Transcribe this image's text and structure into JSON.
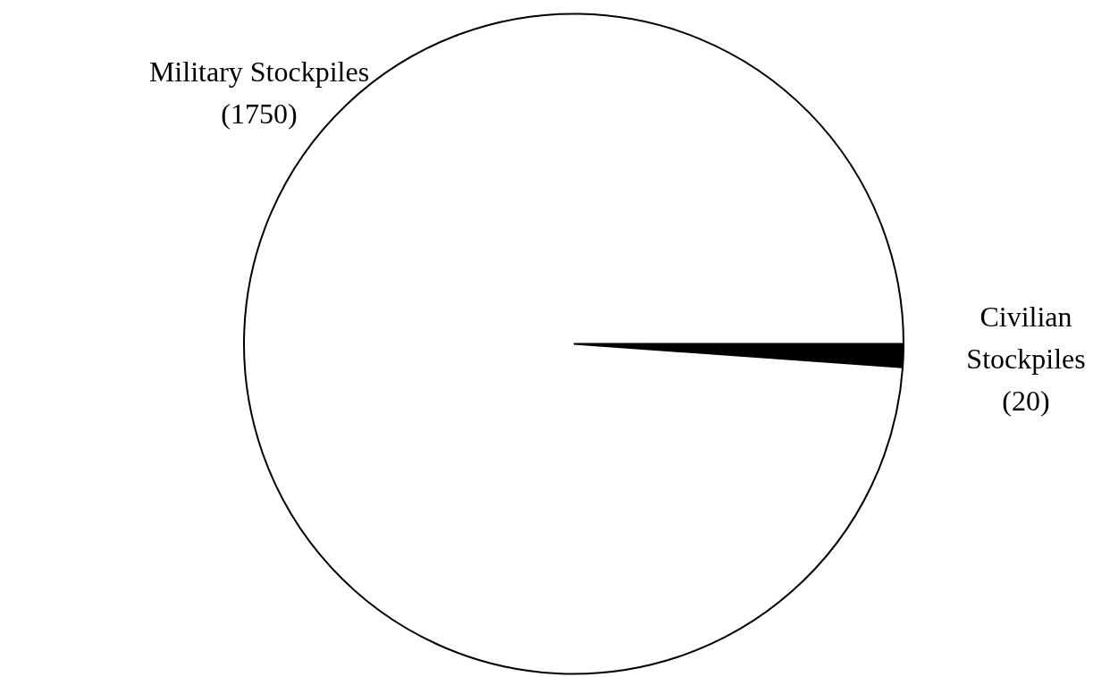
{
  "chart_data": {
    "type": "pie",
    "categories": [
      "Civilian Stockpiles",
      "Military Stockpiles"
    ],
    "values": [
      20,
      1750
    ],
    "colors": [
      "#000000",
      "#ffffff"
    ],
    "value_labels": [
      "(20)",
      "(1750)"
    ],
    "legend": false
  }
}
